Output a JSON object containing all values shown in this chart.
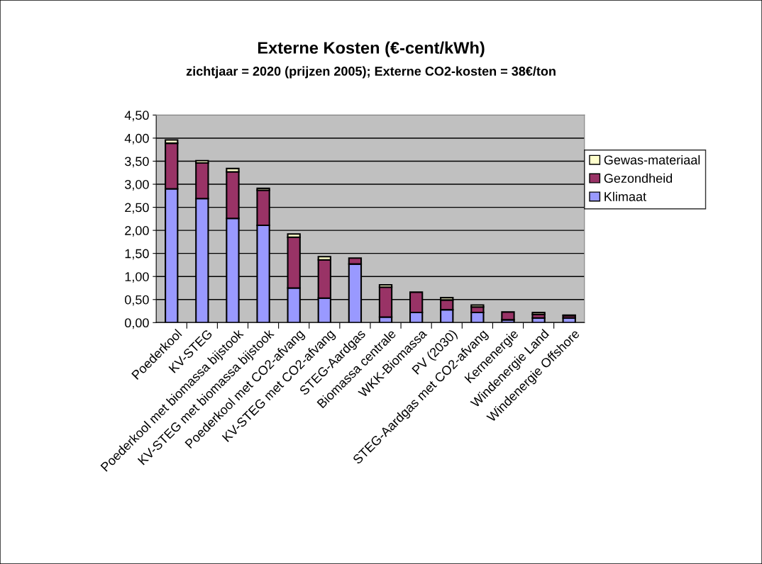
{
  "chart_data": {
    "type": "bar",
    "title": "Externe Kosten (€-cent/kWh)",
    "subtitle": "zichtjaar = 2020 (prijzen 2005); Externe CO2-kosten = 38€/ton",
    "categories": [
      "Poederkool",
      "KV-STEG",
      "Poederkool met biomassa bijstook",
      "KV-STEG met biomassa bijstook",
      "Poederkool met CO2-afvang",
      "KV-STEG met CO2-afvang",
      "STEG-Aardgas",
      "Biomassa centrale",
      "WKK-Biomassa",
      "PV (2030)",
      "STEG-Aardgas met CO2-afvang",
      "Kernenergie",
      "Windenergie Land",
      "Windenergie Offshore"
    ],
    "stacked": true,
    "series": [
      {
        "name": "Klimaat",
        "color": "#9999ff",
        "values": [
          2.9,
          2.69,
          2.26,
          2.11,
          0.75,
          0.53,
          1.27,
          0.12,
          0.22,
          0.28,
          0.22,
          0.06,
          0.1,
          0.1
        ]
      },
      {
        "name": "Gezondheid",
        "color": "#993366",
        "values": [
          0.99,
          0.77,
          1.01,
          0.76,
          1.1,
          0.83,
          0.13,
          0.65,
          0.44,
          0.21,
          0.12,
          0.17,
          0.08,
          0.05
        ]
      },
      {
        "name": "Gewas-materiaal",
        "color": "#ffffcc",
        "values": [
          0.07,
          0.05,
          0.07,
          0.04,
          0.07,
          0.07,
          null,
          0.05,
          null,
          0.05,
          0.04,
          null,
          0.04,
          0.01
        ]
      }
    ],
    "ylim": [
      0,
      4.5
    ],
    "yticks": [
      {
        "value": 0,
        "label": "0,00"
      },
      {
        "value": 0.5,
        "label": "0,50"
      },
      {
        "value": 1,
        "label": "1,00"
      },
      {
        "value": 1.5,
        "label": "1,50"
      },
      {
        "value": 2,
        "label": "2,00"
      },
      {
        "value": 2.5,
        "label": "2,50"
      },
      {
        "value": 3,
        "label": "3,00"
      },
      {
        "value": 3.5,
        "label": "3,50"
      },
      {
        "value": 4,
        "label": "4,00"
      },
      {
        "value": 4.5,
        "label": "4,50"
      }
    ],
    "grid": "y",
    "legend": "right"
  }
}
